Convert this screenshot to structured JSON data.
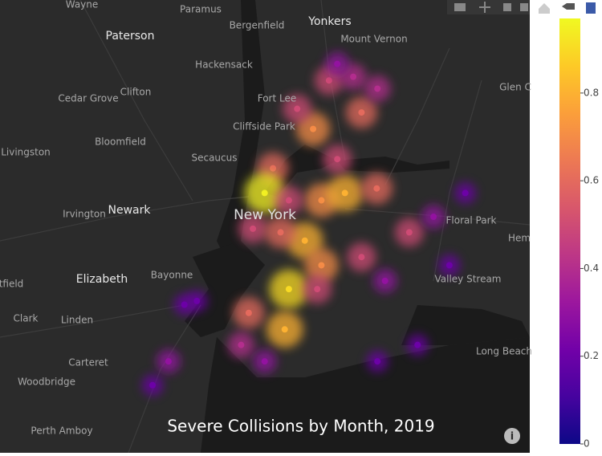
{
  "title": "Severe Collisions by Month, 2019",
  "map": {
    "labels": [
      "Wayne",
      "Paramus",
      "Yonkers",
      "Paterson",
      "Bergenfield",
      "Mount Vernon",
      "Hackensack",
      "Glen C",
      "Cedar Grove",
      "Clifton",
      "Fort Lee",
      "Cliffside Park",
      "Livingston",
      "Bloomfield",
      "Secaucus",
      "Irvington",
      "Newark",
      "New York",
      "Floral Park",
      "Hem",
      "tfield",
      "Elizabeth",
      "Bayonne",
      "Valley Stream",
      "Clark",
      "Linden",
      "Carteret",
      "Long Beach",
      "Woodbridge",
      "Perth Amboy"
    ],
    "points": [
      {
        "lat": 40.86,
        "lon": -73.911,
        "z": 0.5
      },
      {
        "lat": 40.864,
        "lon": -73.876,
        "z": 0.4
      },
      {
        "lat": 40.825,
        "lon": -73.864,
        "z": 0.6
      },
      {
        "lat": 40.807,
        "lon": -73.934,
        "z": 0.7
      },
      {
        "lat": 40.829,
        "lon": -73.957,
        "z": 0.5
      },
      {
        "lat": 40.764,
        "lon": -73.992,
        "z": 0.6
      },
      {
        "lat": 40.737,
        "lon": -74.004,
        "z": 0.95
      },
      {
        "lat": 40.698,
        "lon": -74.021,
        "z": 0.5
      },
      {
        "lat": 40.729,
        "lon": -73.922,
        "z": 0.7
      },
      {
        "lat": 40.737,
        "lon": -73.888,
        "z": 0.8
      },
      {
        "lat": 40.742,
        "lon": -73.842,
        "z": 0.6
      },
      {
        "lat": 40.694,
        "lon": -73.795,
        "z": 0.5
      },
      {
        "lat": 40.685,
        "lon": -73.946,
        "z": 0.8
      },
      {
        "lat": 40.658,
        "lon": -73.922,
        "z": 0.7
      },
      {
        "lat": 40.632,
        "lon": -73.969,
        "z": 0.9
      },
      {
        "lat": 40.588,
        "lon": -73.975,
        "z": 0.8
      },
      {
        "lat": 40.606,
        "lon": -74.027,
        "z": 0.6
      },
      {
        "lat": 40.571,
        "lon": -74.038,
        "z": 0.4
      },
      {
        "lat": 40.553,
        "lon": -74.004,
        "z": 0.3
      },
      {
        "lat": 40.667,
        "lon": -73.864,
        "z": 0.5
      },
      {
        "lat": 40.641,
        "lon": -73.83,
        "z": 0.3
      },
      {
        "lat": 40.711,
        "lon": -73.76,
        "z": 0.3
      },
      {
        "lat": 40.658,
        "lon": -73.737,
        "z": 0.2
      },
      {
        "lat": 40.737,
        "lon": -73.714,
        "z": 0.2
      },
      {
        "lat": 40.615,
        "lon": -74.12,
        "z": 0.2
      },
      {
        "lat": 40.553,
        "lon": -74.143,
        "z": 0.3
      },
      {
        "lat": 40.527,
        "lon": -74.166,
        "z": 0.2
      },
      {
        "lat": 40.619,
        "lon": -74.102,
        "z": 0.2
      },
      {
        "lat": 40.571,
        "lon": -73.783,
        "z": 0.2
      },
      {
        "lat": 40.553,
        "lon": -73.841,
        "z": 0.2
      },
      {
        "lat": 40.632,
        "lon": -73.928,
        "z": 0.5
      },
      {
        "lat": 40.774,
        "lon": -73.899,
        "z": 0.5
      },
      {
        "lat": 40.694,
        "lon": -73.981,
        "z": 0.6
      },
      {
        "lat": 40.729,
        "lon": -73.969,
        "z": 0.5
      },
      {
        "lat": 40.851,
        "lon": -73.841,
        "z": 0.4
      },
      {
        "lat": 40.878,
        "lon": -73.899,
        "z": 0.3
      }
    ]
  },
  "colorbar": {
    "range": [
      0,
      0.97
    ],
    "ticks": [
      0,
      0.2,
      0.4,
      0.6,
      0.8
    ],
    "colorscale": [
      "#0d0887",
      "#46039f",
      "#7201a8",
      "#9c179e",
      "#bd3786",
      "#d8576b",
      "#ed7953",
      "#fb9f3a",
      "#fdca26",
      "#f0f921"
    ]
  }
}
